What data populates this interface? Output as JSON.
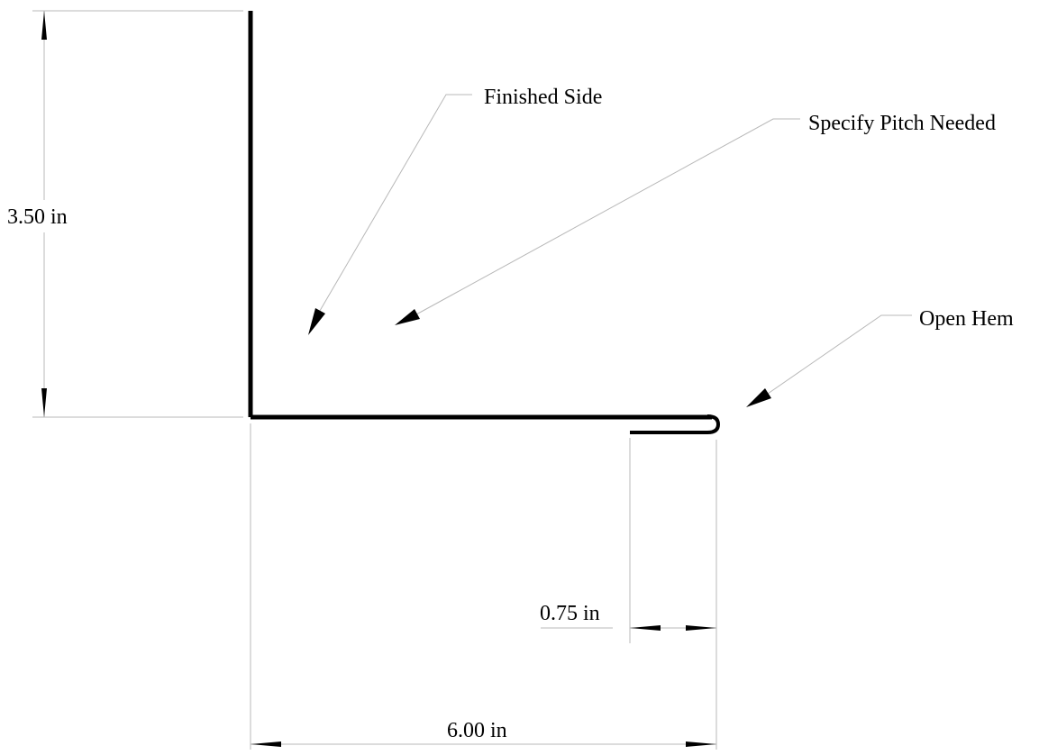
{
  "labels": {
    "finished_side": "Finished Side",
    "specify_pitch": "Specify Pitch Needed",
    "open_hem": "Open Hem"
  },
  "dimensions": {
    "height": "3.50 in",
    "width": "6.00 in",
    "hem": "0.75 in"
  },
  "colors": {
    "line": "#000000",
    "dimension_line": "#b8b8b8",
    "background": "#ffffff"
  }
}
